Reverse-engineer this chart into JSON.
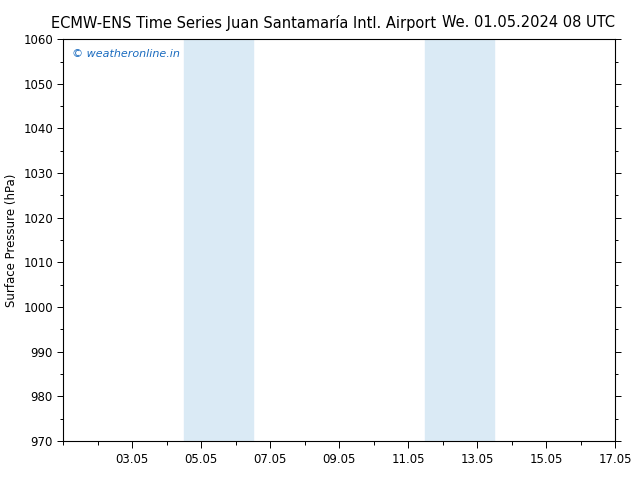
{
  "title_left": "ECMW-ENS Time Series Juan Santamaría Intl. Airport",
  "title_right": "We. 01.05.2024 08 UTC",
  "ylabel": "Surface Pressure (hPa)",
  "ylim": [
    970,
    1060
  ],
  "yticks": [
    970,
    980,
    990,
    1000,
    1010,
    1020,
    1030,
    1040,
    1050,
    1060
  ],
  "xlim": [
    0,
    16
  ],
  "xtick_positions": [
    2,
    4,
    6,
    8,
    10,
    12,
    14,
    16
  ],
  "xtick_labels": [
    "03.05",
    "05.05",
    "07.05",
    "09.05",
    "11.05",
    "13.05",
    "15.05",
    "17.05"
  ],
  "shaded_bands": [
    {
      "xmin": 3.5,
      "xmax": 5.5
    },
    {
      "xmin": 10.5,
      "xmax": 12.5
    }
  ],
  "shade_color": "#daeaf5",
  "watermark": "© weatheronline.in",
  "watermark_color": "#1a6bbf",
  "background_color": "#ffffff",
  "title_fontsize": 10.5,
  "tick_fontsize": 8.5,
  "ylabel_fontsize": 8.5
}
